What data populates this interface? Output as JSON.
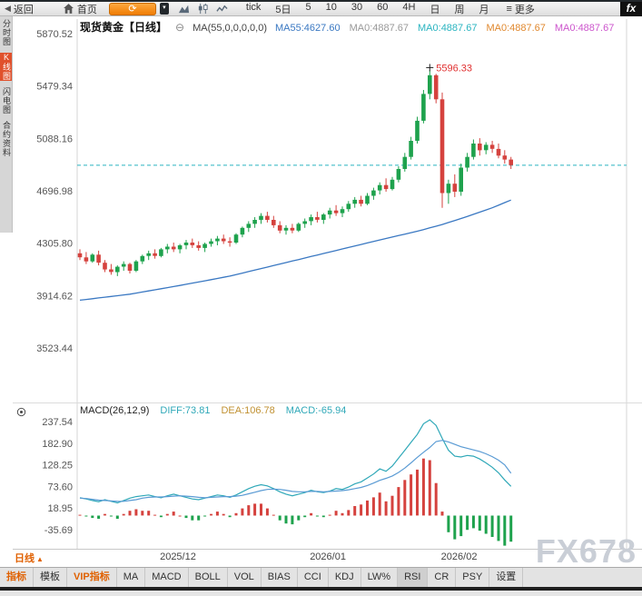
{
  "toolbar": {
    "back_label": "返回",
    "home_label": "首页",
    "refresh_icon": "⟳",
    "periods": [
      "tick",
      "5日",
      "5",
      "10",
      "30",
      "60",
      "4H",
      "日",
      "周",
      "月"
    ],
    "more_label": "更多",
    "logo": "fx"
  },
  "sidebar": {
    "items": [
      {
        "label": "分时图"
      },
      {
        "label": "K线图",
        "active": true
      },
      {
        "label": "闪电图"
      },
      {
        "label": "合约资料"
      }
    ]
  },
  "chart_header": {
    "title": "现货黄金【日线】",
    "ma_param": "MA(55,0,0,0,0,0)",
    "ma_values": [
      {
        "text": "MA55:4627.60",
        "color": "#3a78c2"
      },
      {
        "text": "MA0:4887.67",
        "color": "#999999"
      },
      {
        "text": "MA0:4887.67",
        "color": "#2ab4c0"
      },
      {
        "text": "MA0:4887.67",
        "color": "#e0882e"
      },
      {
        "text": "MA0:4887.67",
        "color": "#cc55cc"
      }
    ]
  },
  "main_chart": {
    "y_ticks": [
      "5870.52",
      "5479.34",
      "5088.16",
      "4696.98",
      "4305.80",
      "3914.62",
      "3523.44"
    ],
    "peak_label": "5596.33",
    "dashed_level": 4887.67
  },
  "macd": {
    "param": "MACD(26,12,9)",
    "diff_label": "DIFF:73.81",
    "dea_label": "DEA:106.78",
    "macd_label": "MACD:-65.94",
    "y_ticks": [
      "237.54",
      "182.90",
      "128.25",
      "73.60",
      "18.95",
      "-35.69"
    ]
  },
  "x_axis": {
    "period_label": "日线",
    "arrow": "▲",
    "dates": [
      {
        "label": "2025/12",
        "index": 16
      },
      {
        "label": "2026/01",
        "index": 40
      },
      {
        "label": "2026/02",
        "index": 61
      }
    ]
  },
  "bottom_tabs": [
    {
      "label": "指标",
      "accent": true
    },
    {
      "label": "模板"
    },
    {
      "label": "VIP指标",
      "accent": true
    },
    {
      "label": "MA"
    },
    {
      "label": "MACD"
    },
    {
      "label": "BOLL"
    },
    {
      "label": "VOL"
    },
    {
      "label": "BIAS"
    },
    {
      "label": "CCI"
    },
    {
      "label": "KDJ"
    },
    {
      "label": "LW%"
    },
    {
      "label": "RSI",
      "selected": true
    },
    {
      "label": "CR"
    },
    {
      "label": "PSY"
    },
    {
      "label": "设置"
    }
  ],
  "watermark": "FX678",
  "colors": {
    "up": "#1ea24d",
    "down": "#d5423e",
    "ma55_line": "#3a78c2",
    "dashed_line": "#2ab4c0",
    "diff_line": "#2fa8b8",
    "dea_line": "#5a9bd4",
    "diff_text": "#2fa8b8",
    "dea_text": "#c09030",
    "macd_text": "#2fa8b8",
    "accent": "#e06000",
    "peak_label": "#e03030",
    "hist_pos": "#d5423e",
    "hist_neg": "#1ea24d"
  },
  "chart_data": {
    "type": "candlestick+macd",
    "price_range": [
      3523.44,
      5870.52
    ],
    "macd_range": [
      -35.69,
      237.54
    ],
    "candles_ohlc": [
      [
        4230,
        4260,
        4180,
        4200
      ],
      [
        4200,
        4240,
        4150,
        4170
      ],
      [
        4170,
        4230,
        4160,
        4220
      ],
      [
        4220,
        4250,
        4140,
        4160
      ],
      [
        4160,
        4180,
        4090,
        4110
      ],
      [
        4110,
        4150,
        4070,
        4090
      ],
      [
        4090,
        4140,
        4060,
        4130
      ],
      [
        4130,
        4170,
        4100,
        4150
      ],
      [
        4150,
        4160,
        4080,
        4100
      ],
      [
        4100,
        4180,
        4090,
        4170
      ],
      [
        4170,
        4220,
        4150,
        4210
      ],
      [
        4210,
        4250,
        4180,
        4230
      ],
      [
        4230,
        4260,
        4190,
        4210
      ],
      [
        4210,
        4270,
        4200,
        4260
      ],
      [
        4260,
        4300,
        4230,
        4280
      ],
      [
        4280,
        4310,
        4240,
        4260
      ],
      [
        4260,
        4300,
        4230,
        4290
      ],
      [
        4290,
        4330,
        4260,
        4310
      ],
      [
        4310,
        4340,
        4270,
        4290
      ],
      [
        4290,
        4320,
        4250,
        4270
      ],
      [
        4270,
        4310,
        4240,
        4300
      ],
      [
        4300,
        4340,
        4280,
        4320
      ],
      [
        4320,
        4360,
        4290,
        4340
      ],
      [
        4340,
        4370,
        4300,
        4320
      ],
      [
        4320,
        4350,
        4280,
        4310
      ],
      [
        4310,
        4380,
        4300,
        4370
      ],
      [
        4370,
        4430,
        4350,
        4420
      ],
      [
        4420,
        4470,
        4390,
        4450
      ],
      [
        4450,
        4500,
        4420,
        4480
      ],
      [
        4480,
        4530,
        4450,
        4510
      ],
      [
        4510,
        4540,
        4460,
        4480
      ],
      [
        4480,
        4510,
        4420,
        4440
      ],
      [
        4440,
        4470,
        4380,
        4400
      ],
      [
        4400,
        4440,
        4370,
        4420
      ],
      [
        4420,
        4450,
        4380,
        4400
      ],
      [
        4400,
        4460,
        4390,
        4450
      ],
      [
        4450,
        4490,
        4420,
        4470
      ],
      [
        4470,
        4520,
        4440,
        4500
      ],
      [
        4500,
        4540,
        4460,
        4480
      ],
      [
        4480,
        4530,
        4450,
        4520
      ],
      [
        4520,
        4570,
        4490,
        4550
      ],
      [
        4550,
        4590,
        4510,
        4530
      ],
      [
        4530,
        4580,
        4500,
        4560
      ],
      [
        4560,
        4620,
        4540,
        4600
      ],
      [
        4600,
        4650,
        4570,
        4630
      ],
      [
        4630,
        4660,
        4580,
        4600
      ],
      [
        4600,
        4680,
        4590,
        4660
      ],
      [
        4660,
        4720,
        4630,
        4700
      ],
      [
        4700,
        4760,
        4670,
        4740
      ],
      [
        4740,
        4790,
        4690,
        4710
      ],
      [
        4710,
        4800,
        4700,
        4780
      ],
      [
        4780,
        4880,
        4760,
        4860
      ],
      [
        4860,
        4980,
        4840,
        4950
      ],
      [
        4950,
        5100,
        4930,
        5070
      ],
      [
        5070,
        5250,
        5050,
        5220
      ],
      [
        5220,
        5450,
        5200,
        5420
      ],
      [
        5420,
        5596.33,
        5380,
        5560
      ],
      [
        5560,
        5570,
        5350,
        5380
      ],
      [
        5380,
        5430,
        4570,
        4680
      ],
      [
        4680,
        4780,
        4600,
        4750
      ],
      [
        4750,
        4820,
        4650,
        4690
      ],
      [
        4690,
        4900,
        4660,
        4870
      ],
      [
        4870,
        4980,
        4840,
        4950
      ],
      [
        4950,
        5080,
        4930,
        5050
      ],
      [
        5050,
        5090,
        4960,
        5000
      ],
      [
        5000,
        5060,
        4970,
        5040
      ],
      [
        5040,
        5070,
        4980,
        5010
      ],
      [
        5010,
        5050,
        4940,
        4960
      ],
      [
        4960,
        5000,
        4900,
        4930
      ],
      [
        4930,
        4950,
        4860,
        4888
      ]
    ],
    "ma55_anchors": [
      [
        0,
        3880
      ],
      [
        8,
        3925
      ],
      [
        16,
        3990
      ],
      [
        24,
        4060
      ],
      [
        32,
        4150
      ],
      [
        40,
        4240
      ],
      [
        48,
        4330
      ],
      [
        54,
        4395
      ],
      [
        58,
        4445
      ],
      [
        62,
        4505
      ],
      [
        66,
        4570
      ],
      [
        69,
        4628
      ]
    ],
    "diff": [
      45,
      42,
      38,
      35,
      40,
      36,
      32,
      38,
      44,
      48,
      50,
      52,
      48,
      45,
      50,
      54,
      50,
      46,
      42,
      40,
      44,
      48,
      52,
      50,
      46,
      52,
      60,
      68,
      74,
      78,
      75,
      68,
      60,
      54,
      50,
      54,
      58,
      64,
      60,
      58,
      62,
      68,
      66,
      72,
      80,
      85,
      95,
      105,
      118,
      112,
      125,
      145,
      165,
      185,
      205,
      232,
      242,
      228,
      195,
      165,
      150,
      148,
      152,
      150,
      143,
      133,
      122,
      108,
      90,
      73.81
    ],
    "dea": [
      44,
      43,
      41,
      39,
      38,
      37,
      36,
      36,
      38,
      40,
      44,
      46,
      47,
      47,
      48,
      49,
      50,
      49,
      48,
      46,
      45,
      46,
      47,
      48,
      48,
      49,
      51,
      55,
      59,
      63,
      66,
      67,
      66,
      64,
      61,
      60,
      60,
      61,
      61,
      60,
      61,
      62,
      63,
      65,
      68,
      71,
      76,
      82,
      89,
      94,
      100,
      109,
      120,
      133,
      147,
      160,
      172,
      187,
      190,
      186,
      180,
      174,
      170,
      166,
      162,
      156,
      149,
      140,
      128,
      106.78
    ]
  }
}
